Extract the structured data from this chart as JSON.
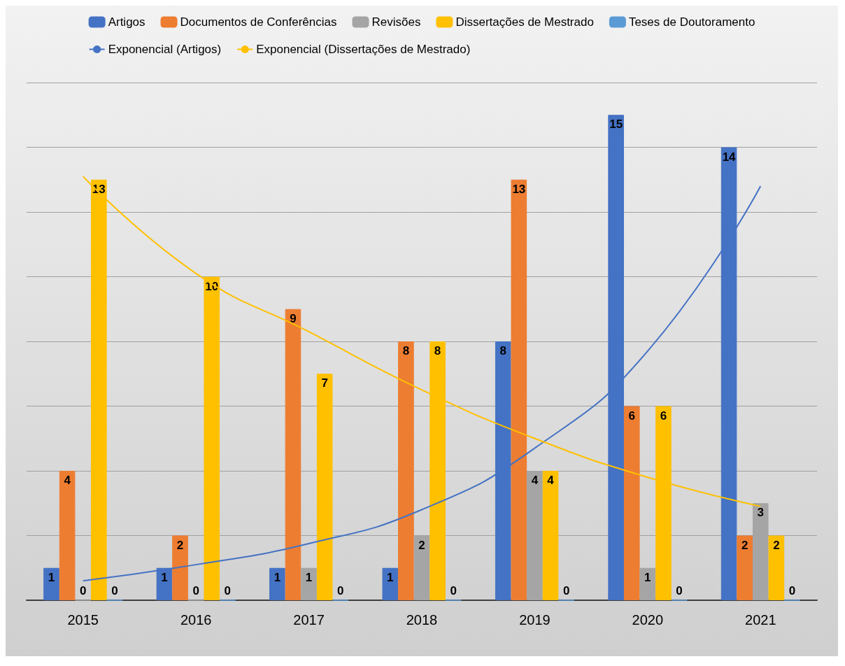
{
  "chart_data": {
    "type": "bar",
    "categories": [
      "2015",
      "2016",
      "2017",
      "2018",
      "2019",
      "2020",
      "2021"
    ],
    "series": [
      {
        "name": "Artigos",
        "color": "#4472c4",
        "values": [
          1,
          1,
          1,
          1,
          8,
          15,
          14
        ],
        "value_labels": [
          "1",
          "1",
          "1",
          "1",
          "8",
          "15",
          "14"
        ]
      },
      {
        "name": "Documentos de Conferências",
        "color": "#ed7d31",
        "values": [
          4,
          2,
          9,
          8,
          13,
          6,
          2
        ],
        "value_labels": [
          "4",
          "2",
          "9",
          "8",
          "13",
          "6",
          "2"
        ]
      },
      {
        "name": "Revisões",
        "color": "#a5a5a5",
        "values": [
          0,
          0,
          1,
          2,
          4,
          1,
          3
        ],
        "value_labels": [
          "0",
          "0",
          "1",
          "2",
          "4",
          "1",
          "3"
        ]
      },
      {
        "name": "Dissertações de Mestrado",
        "color": "#ffc000",
        "values": [
          13,
          10,
          7,
          8,
          4,
          6,
          2
        ],
        "value_labels": [
          "13",
          "10",
          "7",
          "8",
          "4",
          "6",
          "2"
        ]
      },
      {
        "name": "Teses de Doutoramento",
        "color": "#5b9bd5",
        "values": [
          0,
          0,
          0,
          0,
          0,
          0,
          0
        ],
        "value_labels": [
          "0",
          "0",
          "0",
          "0",
          "0",
          "0",
          "0"
        ]
      },
      {
        "name": "Exponencial (Artigos)",
        "type": "line",
        "color": "#4472c4",
        "values": [
          0.6,
          1.1,
          1.75,
          2.8,
          4.7,
          7.7,
          12.8
        ]
      },
      {
        "name": "Exponencial (Dissertações de Mestrado)",
        "type": "line",
        "color": "#ffc000",
        "values": [
          13.1,
          10.1,
          8.3,
          6.5,
          5.0,
          3.8,
          2.9
        ]
      }
    ],
    "ylim": [
      0,
      16
    ],
    "yticks": [
      {
        "value": 0,
        "label": null
      },
      {
        "value": 2,
        "label": null
      },
      {
        "value": 4,
        "label": null
      },
      {
        "value": 6,
        "label": null
      },
      {
        "value": 8,
        "label": null
      },
      {
        "value": 10,
        "label": null
      },
      {
        "value": 12,
        "label": null
      },
      {
        "value": 14,
        "label": null
      },
      {
        "value": 16,
        "label": null
      }
    ],
    "tick_labels": "x",
    "grid": "y",
    "legend": "top",
    "marker": "none",
    "line_style": "solid"
  }
}
